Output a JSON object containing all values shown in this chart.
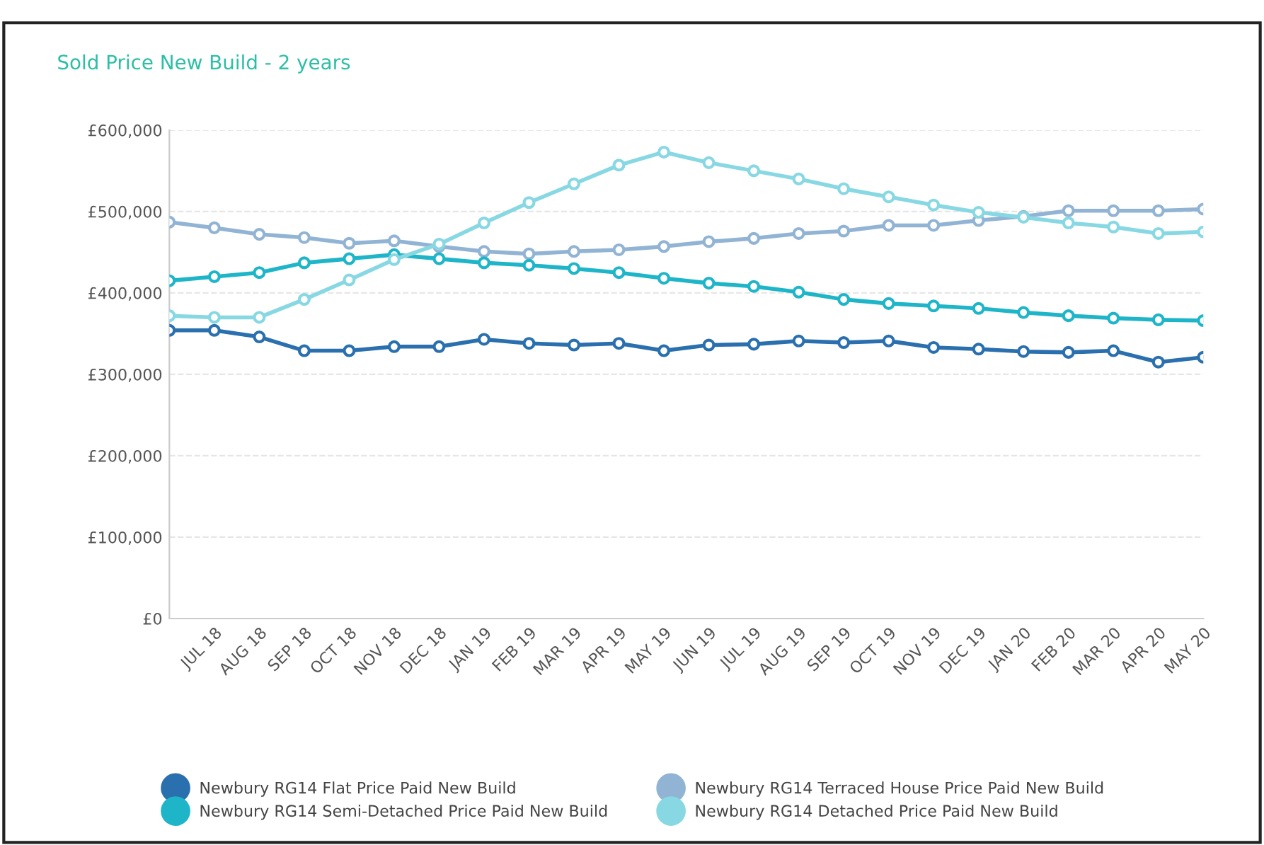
{
  "chart_data": {
    "type": "line",
    "title": "Sold Price New Build - 2 years",
    "categories": [
      null,
      "JUL 18",
      "AUG 18",
      "SEP 18",
      "OCT 18",
      "NOV 18",
      "DEC 18",
      "JAN 19",
      "FEB 19",
      "MAR 19",
      "APR 19",
      "MAY 19",
      "JUN 19",
      "JUL 19",
      "AUG 19",
      "SEP 19",
      "OCT 19",
      "NOV 19",
      "DEC 19",
      "JAN 20",
      "FEB 20",
      "MAR 20",
      "APR 20",
      "MAY 20"
    ],
    "series": [
      {
        "name": "Newbury RG14 Flat Price Paid New Build",
        "color": "#2a6fae",
        "values": [
          354000,
          354000,
          346000,
          329000,
          329000,
          334000,
          334000,
          343000,
          338000,
          336000,
          338000,
          329000,
          336000,
          337000,
          341000,
          339000,
          341000,
          333000,
          331000,
          328000,
          327000,
          329000,
          315000,
          321000
        ]
      },
      {
        "name": "Newbury RG14 Terraced House Price Paid New Build",
        "color": "#92b4d4",
        "values": [
          487000,
          480000,
          472000,
          468000,
          461000,
          464000,
          457000,
          451000,
          448000,
          451000,
          453000,
          457000,
          463000,
          467000,
          473000,
          476000,
          483000,
          483000,
          489000,
          494000,
          501000,
          501000,
          501000,
          503000
        ]
      },
      {
        "name": "Newbury RG14 Semi-Detached Price Paid New Build",
        "color": "#1fb5c9",
        "values": [
          415000,
          420000,
          425000,
          437000,
          442000,
          447000,
          442000,
          437000,
          434000,
          430000,
          425000,
          418000,
          412000,
          408000,
          401000,
          392000,
          387000,
          384000,
          381000,
          376000,
          372000,
          369000,
          367000,
          366000
        ]
      },
      {
        "name": "Newbury RG14 Detached Price Paid New Build",
        "color": "#88d8e3",
        "values": [
          372000,
          370000,
          370000,
          392000,
          416000,
          441000,
          460000,
          486000,
          511000,
          534000,
          557000,
          573000,
          560000,
          550000,
          540000,
          528000,
          518000,
          508000,
          499000,
          493000,
          486000,
          481000,
          473000,
          475000
        ]
      }
    ],
    "ylim": [
      0,
      600000
    ],
    "yticks": [
      {
        "value": 0,
        "label": "£0"
      },
      {
        "value": 100000,
        "label": "£100,000"
      },
      {
        "value": 200000,
        "label": "£200,000"
      },
      {
        "value": 300000,
        "label": "£300,000"
      },
      {
        "value": 400000,
        "label": "£400,000"
      },
      {
        "value": 500000,
        "label": "£500,000"
      },
      {
        "value": 600000,
        "label": "£600,000"
      }
    ],
    "grid": "y",
    "legend": "bottom",
    "marker": "circle",
    "line_style": "solid"
  }
}
